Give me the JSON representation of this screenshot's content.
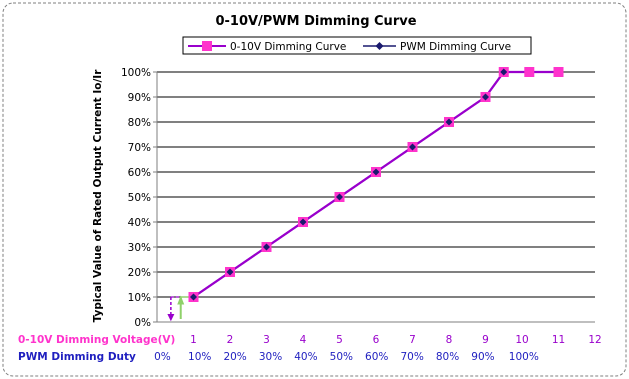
{
  "colors": {
    "pink": "#ff33cc",
    "purple": "#9900cc",
    "navy": "#1a1a6e",
    "blue_text": "#1f1fbf",
    "green": "#8fd16a"
  },
  "chart_data": {
    "type": "line",
    "title": "0-10V/PWM Dimming Curve",
    "ylabel": "Typical Value of Rated Output Current Io/Ir",
    "ylim": [
      0,
      100
    ],
    "xlim": [
      0,
      12
    ],
    "grid": true,
    "legend_position": "top",
    "y_ticks": [
      "0%",
      "10%",
      "20%",
      "30%",
      "40%",
      "50%",
      "60%",
      "70%",
      "80%",
      "90%",
      "100%"
    ],
    "voltage_row": {
      "label": "0-10V Dimming Voltage(V)",
      "ticks": [
        "1",
        "2",
        "3",
        "4",
        "5",
        "6",
        "7",
        "8",
        "9",
        "10",
        "11",
        "12"
      ]
    },
    "duty_row": {
      "label": "PWM Dimming Duty",
      "ticks": [
        "0%",
        "10%",
        "20%",
        "30%",
        "40%",
        "50%",
        "60%",
        "70%",
        "80%",
        "90%",
        "100%"
      ]
    },
    "series": [
      {
        "name": "0-10V Dimming Curve",
        "color": "#ff33cc",
        "x": [
          1,
          2,
          3,
          4,
          5,
          6,
          7,
          8,
          9,
          9.5,
          10.2,
          11
        ],
        "y": [
          10,
          20,
          30,
          40,
          50,
          60,
          70,
          80,
          90,
          100,
          100,
          100
        ]
      },
      {
        "name": "PWM Dimming Curve",
        "color": "#1a1a6e",
        "x": [
          1,
          2,
          3,
          4,
          5,
          6,
          7,
          8,
          9,
          9.5
        ],
        "y": [
          10,
          20,
          30,
          40,
          50,
          60,
          70,
          80,
          90,
          100
        ]
      }
    ]
  }
}
